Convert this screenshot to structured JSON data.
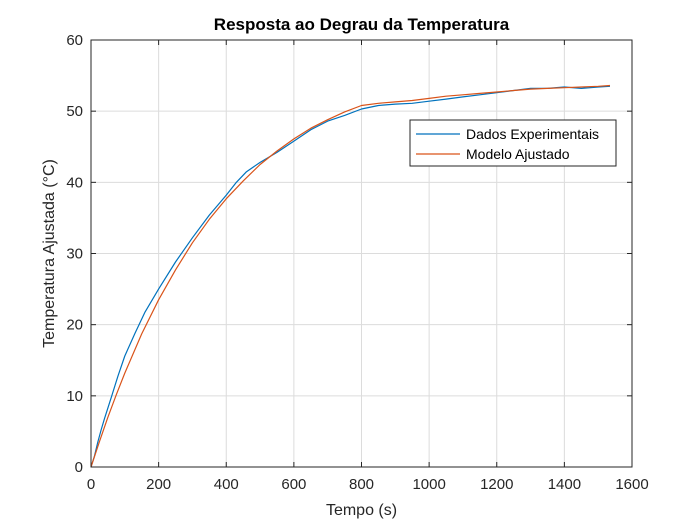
{
  "chart_data": {
    "type": "line",
    "title": "Resposta ao Degrau da Temperatura",
    "xlabel": "Tempo (s)",
    "ylabel": "Temperatura Ajustada (°C)",
    "xlim": [
      0,
      1600
    ],
    "ylim": [
      0,
      60
    ],
    "xticks": [
      0,
      200,
      400,
      600,
      800,
      1000,
      1200,
      1400,
      1600
    ],
    "yticks": [
      0,
      10,
      20,
      30,
      40,
      50,
      60
    ],
    "grid": true,
    "legend_position": "top-right",
    "series": [
      {
        "name": "Dados Experimentais",
        "color": "#0072BD",
        "x": [
          0,
          10,
          20,
          30,
          40,
          60,
          80,
          100,
          130,
          160,
          200,
          250,
          300,
          350,
          400,
          430,
          460,
          500,
          550,
          600,
          650,
          700,
          750,
          800,
          850,
          900,
          950,
          1000,
          1050,
          1100,
          1150,
          1200,
          1250,
          1300,
          1350,
          1400,
          1450,
          1500,
          1535
        ],
        "y": [
          0,
          1.5,
          3.5,
          5.2,
          6.8,
          9.8,
          12.8,
          15.6,
          18.8,
          21.8,
          25.0,
          28.8,
          32.2,
          35.4,
          38.2,
          40.0,
          41.5,
          42.8,
          44.2,
          45.8,
          47.4,
          48.6,
          49.4,
          50.3,
          50.8,
          51.0,
          51.1,
          51.4,
          51.7,
          52.0,
          52.3,
          52.6,
          52.9,
          53.2,
          53.2,
          53.4,
          53.2,
          53.4,
          53.5
        ]
      },
      {
        "name": "Modelo Ajustado",
        "color": "#D95319",
        "x": [
          0,
          25,
          50,
          75,
          100,
          150,
          200,
          250,
          300,
          350,
          400,
          450,
          500,
          550,
          600,
          650,
          700,
          750,
          800,
          850,
          900,
          950,
          1000,
          1050,
          1100,
          1150,
          1200,
          1250,
          1300,
          1350,
          1400,
          1450,
          1500,
          1535
        ],
        "y": [
          0,
          3.6,
          7.0,
          10.2,
          13.2,
          18.7,
          23.5,
          27.7,
          31.5,
          34.8,
          37.7,
          40.2,
          42.5,
          44.4,
          46.1,
          47.6,
          48.8,
          49.9,
          50.8,
          51.1,
          51.3,
          51.5,
          51.8,
          52.1,
          52.3,
          52.5,
          52.7,
          52.9,
          53.1,
          53.2,
          53.3,
          53.4,
          53.5,
          53.6
        ]
      }
    ]
  }
}
